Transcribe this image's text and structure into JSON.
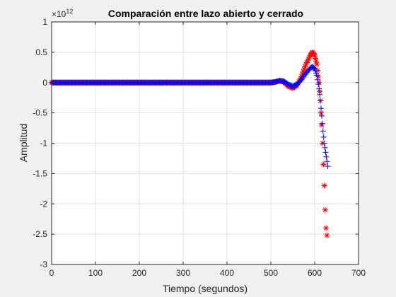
{
  "colors": {
    "figure_background": "#f0f0f0",
    "axes_background": "#ffffff",
    "grid": "#dfdfdf",
    "axis": "#262626",
    "series_open": "#ff0000",
    "series_closed": "#0000ff"
  },
  "chart_data": {
    "type": "scatter",
    "title": "Comparación entre lazo abierto y cerrado",
    "xlabel": "Tiempo (segundos)",
    "ylabel": "Amplitud",
    "y_exponent_label": "×10",
    "y_exponent_power": "12",
    "y_scale_factor": 1000000000000.0,
    "xlim": [
      0,
      700
    ],
    "ylim": [
      -3,
      1
    ],
    "x_ticks": [
      0,
      100,
      200,
      300,
      400,
      500,
      600,
      700
    ],
    "y_ticks": [
      -3,
      -2.5,
      -2,
      -1.5,
      -1,
      -0.5,
      0,
      0.5,
      1
    ],
    "grid": true,
    "legend": "none",
    "series": [
      {
        "color": "#ff0000",
        "marker": "asterisk",
        "x": [
          0,
          50,
          100,
          150,
          200,
          250,
          300,
          350,
          400,
          450,
          500,
          510,
          520,
          530,
          540,
          550,
          560,
          570,
          580,
          590,
          595,
          600,
          605,
          610,
          613,
          616,
          618,
          620,
          622,
          624,
          626,
          628
        ],
        "y": [
          0,
          0,
          0,
          0,
          0,
          0,
          0,
          0,
          0,
          0,
          0,
          0.01,
          0.03,
          0.01,
          -0.06,
          -0.09,
          -0.04,
          0.1,
          0.3,
          0.45,
          0.5,
          0.45,
          0.3,
          0.0,
          -0.3,
          -0.7,
          -1.0,
          -1.35,
          -1.7,
          -2.1,
          -2.4,
          -2.52
        ]
      },
      {
        "color": "#0000ff",
        "marker": "plus",
        "x": [
          0,
          50,
          100,
          150,
          200,
          250,
          300,
          350,
          400,
          450,
          500,
          510,
          520,
          530,
          540,
          550,
          560,
          570,
          580,
          590,
          595,
          600,
          605,
          610,
          613,
          616,
          619,
          622,
          625,
          628,
          630
        ],
        "y": [
          0,
          0,
          0,
          0,
          0,
          0,
          0,
          0,
          0,
          0,
          0,
          0.01,
          0.03,
          0.02,
          -0.03,
          -0.06,
          -0.03,
          0.05,
          0.15,
          0.24,
          0.26,
          0.23,
          0.12,
          -0.1,
          -0.3,
          -0.55,
          -0.8,
          -1.0,
          -1.15,
          -1.3,
          -1.38
        ]
      }
    ]
  }
}
